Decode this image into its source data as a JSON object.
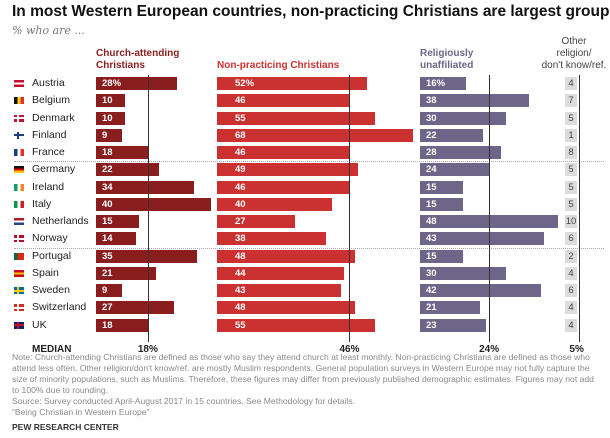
{
  "chart_data": {
    "type": "bar",
    "title": "In most Western European countries, non-practicing Christians are largest group",
    "subtitle": "% who are ...",
    "categories": [
      "Austria",
      "Belgium",
      "Denmark",
      "Finland",
      "France",
      "Germany",
      "Ireland",
      "Italy",
      "Netherlands",
      "Norway",
      "Portugal",
      "Spain",
      "Sweden",
      "Switzerland",
      "UK"
    ],
    "series": [
      {
        "name": "Church-attending Christians",
        "values": [
          28,
          10,
          10,
          9,
          18,
          22,
          34,
          40,
          15,
          14,
          35,
          21,
          9,
          27,
          18
        ],
        "median": 18,
        "color": "#8a1e1e"
      },
      {
        "name": "Non-practicing Christians",
        "values": [
          52,
          46,
          55,
          68,
          46,
          49,
          46,
          40,
          27,
          38,
          48,
          44,
          43,
          48,
          55
        ],
        "median": 46,
        "color": "#cc3131"
      },
      {
        "name": "Religiously unaffiliated",
        "values": [
          16,
          38,
          30,
          22,
          28,
          24,
          15,
          15,
          48,
          43,
          15,
          30,
          42,
          21,
          23
        ],
        "median": 24,
        "color": "#6e6688"
      },
      {
        "name": "Other religion/ don't know/ref.",
        "values": [
          4,
          7,
          5,
          1,
          8,
          5,
          5,
          5,
          10,
          6,
          2,
          4,
          6,
          4,
          4
        ],
        "median": 5,
        "color": "#dcdcdc"
      }
    ],
    "headers": [
      [
        "Church-attending",
        "Christians"
      ],
      [
        "Non-practicing Christians"
      ],
      [
        "Religiously",
        "unaffiliated"
      ],
      [
        "Other",
        "religion/",
        "don't know/ref."
      ]
    ],
    "median_label": "MEDIAN",
    "median_labels": [
      "18%",
      "46%",
      "24%",
      "5%"
    ],
    "first_row_suffix": "%",
    "flags": [
      [
        "#c8102e",
        "#fff",
        "#c8102e",
        "h"
      ],
      [
        "#111",
        "#f7d117",
        "#e0312d",
        "v"
      ],
      [
        "#c8102e",
        "#fff",
        "#c8102e",
        "x"
      ],
      [
        "#fff",
        "#1a3e85",
        "#fff",
        "x"
      ],
      [
        "#1a3e85",
        "#fff",
        "#e0312d",
        "v"
      ],
      [
        "#111",
        "#d00",
        "#f7c600",
        "h"
      ],
      [
        "#169b62",
        "#fff",
        "#f08a24",
        "v"
      ],
      [
        "#16924a",
        "#fff",
        "#cd212a",
        "v"
      ],
      [
        "#ae1c28",
        "#fff",
        "#21468b",
        "h"
      ],
      [
        "#ba0c2f",
        "#fff",
        "#00205b",
        "x"
      ],
      [
        "#046a38",
        "#da291c",
        "#da291c",
        "v"
      ],
      [
        "#c60b1e",
        "#ffc400",
        "#c60b1e",
        "h"
      ],
      [
        "#006aa7",
        "#fecc00",
        "#006aa7",
        "x"
      ],
      [
        "#d52b1e",
        "#fff",
        "#d52b1e",
        "x"
      ],
      [
        "#012169",
        "#c8102e",
        "#fff",
        "x"
      ]
    ]
  },
  "note": "Note: Church-attending Christians are defined as those who say they attend church at least monthly. Non-practicing Christians are defined as those who attend less often. Other religion/don't know/ref. are mostly Muslim respondents. General population surveys in Western Europe may not fully capture the size of minority populations, such as Muslims. Therefore, these figures may differ from previously published demographic estimates. Figures may not add to 100% due to rounding.",
  "source": "Source: Survey conducted April-August 2017 in 15 countries. See Methodology for details.",
  "report": "“Being Christian in Western Europe”",
  "credit": "PEW RESEARCH CENTER"
}
